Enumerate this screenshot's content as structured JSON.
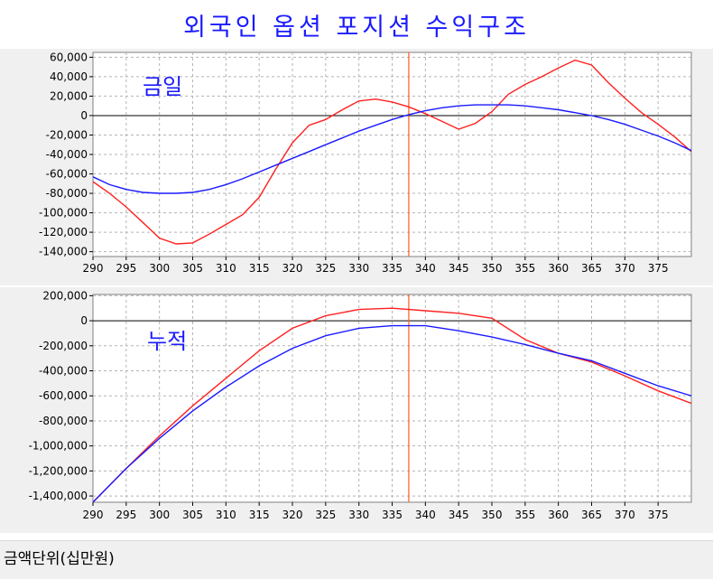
{
  "title": "외국인 옵션 포지션 수익구조",
  "footer": {
    "unit_label": "금액단위(십만원)"
  },
  "colors": {
    "today_or_profit": "#ff2020",
    "cumulative_or_theoretical": "#1a1aff",
    "marker": "#ff5a28",
    "zero_line": "#000000",
    "grid": "#b4b4b4"
  },
  "chart_data": [
    {
      "type": "line",
      "annotation": "금일",
      "xlim": [
        290,
        380
      ],
      "ylim": [
        -145000,
        65000
      ],
      "x_ticks": [
        290,
        295,
        300,
        305,
        310,
        315,
        320,
        325,
        330,
        335,
        340,
        345,
        350,
        355,
        360,
        365,
        370,
        375
      ],
      "x_tick_labels": [
        "290",
        "295",
        "300",
        "305",
        "310",
        "315",
        "320",
        "325",
        "330",
        "335",
        "340",
        "345",
        "350",
        "355",
        "360",
        "365",
        "370",
        "375"
      ],
      "y_ticks": [
        60000,
        40000,
        20000,
        0,
        -20000,
        -40000,
        -60000,
        -80000,
        -100000,
        -120000,
        -140000
      ],
      "y_tick_labels": [
        "60,000",
        "40,000",
        "20,000",
        "0",
        "-20,000",
        "-40,000",
        "-60,000",
        "-80,000",
        "-100,000",
        "-120,000",
        "-140,000"
      ],
      "grid": true,
      "marker_x": 337.5,
      "series": [
        {
          "color": "#ff2020",
          "x": [
            290,
            292.5,
            295,
            297.5,
            300,
            302.5,
            305,
            307.5,
            310,
            312.5,
            315,
            317.5,
            320,
            322.5,
            325,
            327.5,
            330,
            332.5,
            335,
            337.5,
            340,
            342.5,
            345,
            347.5,
            350,
            352.5,
            355,
            357.5,
            360,
            362.5,
            365,
            367.5,
            370,
            372.5,
            375,
            377.5,
            380
          ],
          "y": [
            -68000,
            -80000,
            -94000,
            -110000,
            -126000,
            -132000,
            -131000,
            -122000,
            -112000,
            -102000,
            -84000,
            -55000,
            -28000,
            -10000,
            -4000,
            6000,
            15000,
            17000,
            14000,
            9000,
            2000,
            -6000,
            -14000,
            -8000,
            4000,
            22000,
            32000,
            40000,
            49000,
            57000,
            52000,
            34000,
            18000,
            3000,
            -9000,
            -22000,
            -37000
          ]
        },
        {
          "color": "#1a1aff",
          "x": [
            290,
            292.5,
            295,
            297.5,
            300,
            302.5,
            305,
            307.5,
            310,
            312.5,
            315,
            317.5,
            320,
            322.5,
            325,
            327.5,
            330,
            332.5,
            335,
            337.5,
            340,
            342.5,
            345,
            347.5,
            350,
            352.5,
            355,
            357.5,
            360,
            362.5,
            365,
            367.5,
            370,
            372.5,
            375,
            377.5,
            380
          ],
          "y": [
            -63000,
            -71000,
            -76000,
            -79000,
            -80000,
            -80000,
            -79000,
            -76000,
            -71000,
            -65000,
            -58000,
            -51000,
            -44000,
            -37000,
            -30000,
            -23000,
            -16000,
            -10000,
            -4000,
            1000,
            5000,
            8000,
            10000,
            11000,
            11000,
            11000,
            10000,
            8000,
            6000,
            3000,
            0,
            -4000,
            -9000,
            -15000,
            -21000,
            -28000,
            -36000
          ]
        }
      ]
    },
    {
      "type": "line",
      "annotation": "누적",
      "xlim": [
        290,
        380
      ],
      "ylim": [
        -1450000,
        210000
      ],
      "x_ticks": [
        290,
        295,
        300,
        305,
        310,
        315,
        320,
        325,
        330,
        335,
        340,
        345,
        350,
        355,
        360,
        365,
        370,
        375
      ],
      "x_tick_labels": [
        "290",
        "295",
        "300",
        "305",
        "310",
        "315",
        "320",
        "325",
        "330",
        "335",
        "340",
        "345",
        "350",
        "355",
        "360",
        "365",
        "370",
        "375"
      ],
      "y_ticks": [
        200000,
        0,
        -200000,
        -400000,
        -600000,
        -800000,
        -1000000,
        -1200000,
        -1400000
      ],
      "y_tick_labels": [
        "200,000",
        "0",
        "-200,000",
        "-400,000",
        "-600,000",
        "-800,000",
        "-1,000,000",
        "-1,200,000",
        "-1,400,000"
      ],
      "grid": true,
      "marker_x": 337.5,
      "series": [
        {
          "color": "#ff2020",
          "x": [
            290,
            295,
            300,
            305,
            310,
            315,
            320,
            325,
            330,
            335,
            340,
            345,
            350,
            355,
            360,
            365,
            370,
            375,
            380
          ],
          "y": [
            -1450000,
            -1180000,
            -920000,
            -680000,
            -460000,
            -240000,
            -60000,
            40000,
            90000,
            100000,
            80000,
            60000,
            20000,
            -150000,
            -260000,
            -330000,
            -440000,
            -560000,
            -660000
          ]
        },
        {
          "color": "#1a1aff",
          "x": [
            290,
            295,
            300,
            305,
            310,
            315,
            320,
            325,
            330,
            335,
            340,
            345,
            350,
            355,
            360,
            365,
            370,
            375,
            380
          ],
          "y": [
            -1450000,
            -1180000,
            -940000,
            -720000,
            -530000,
            -360000,
            -220000,
            -120000,
            -60000,
            -40000,
            -40000,
            -80000,
            -130000,
            -190000,
            -260000,
            -320000,
            -420000,
            -520000,
            -600000
          ]
        }
      ]
    }
  ]
}
